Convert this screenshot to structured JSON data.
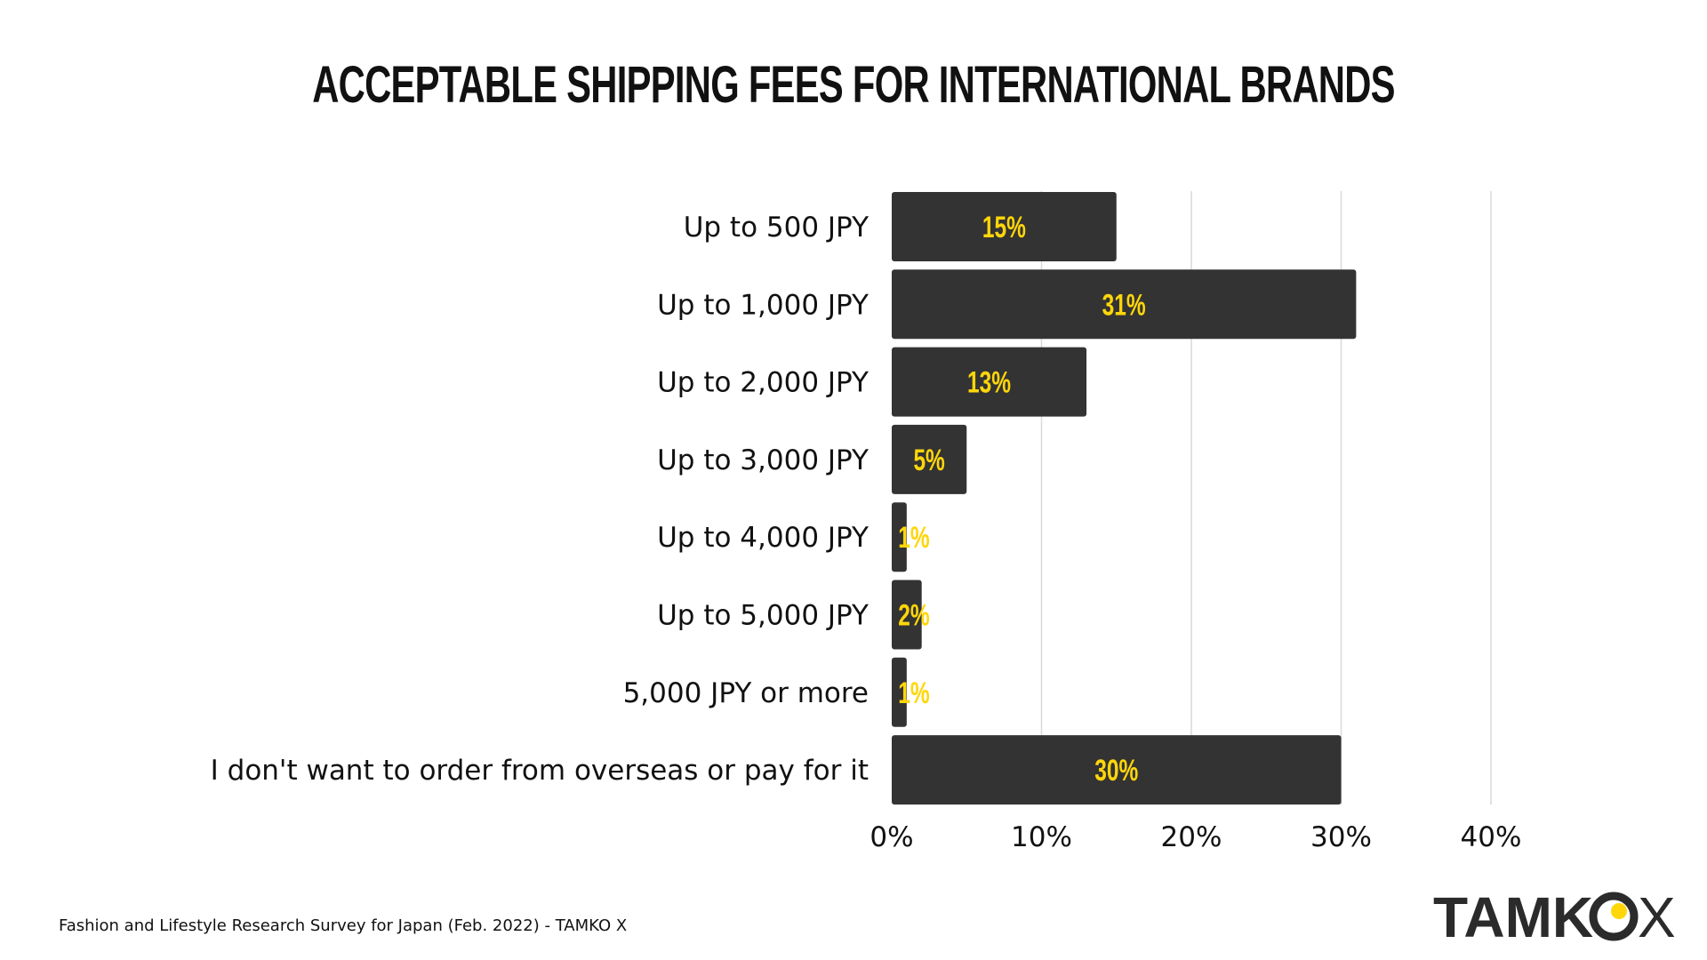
{
  "chart_data": {
    "type": "bar",
    "orientation": "horizontal",
    "title": "ACCEPTABLE SHIPPING FEES FOR INTERNATIONAL BRANDS",
    "categories": [
      "Up to 500 JPY",
      "Up to 1,000 JPY",
      "Up to 2,000 JPY",
      "Up to 3,000 JPY",
      "Up to 4,000 JPY",
      "Up to 5,000 JPY",
      "5,000 JPY or more",
      "I don't want to order from overseas or pay for it"
    ],
    "values": [
      15,
      31,
      13,
      5,
      1,
      2,
      1,
      30
    ],
    "data_labels": [
      "15%",
      "31%",
      "13%",
      "5%",
      "1%",
      "2%",
      "1%",
      "30%"
    ],
    "xlim": [
      0,
      40
    ],
    "x_ticks": [
      0,
      10,
      20,
      30,
      40
    ],
    "x_tick_labels": [
      "0%",
      "10%",
      "20%",
      "30%",
      "40%"
    ],
    "grid": true,
    "legend": "none",
    "colors": {
      "bar": "#333333",
      "label": "#FFD60A",
      "grid": "#d9d9d9"
    }
  },
  "footer": {
    "source": "Fashion and Lifestyle Research Survey for Japan (Feb. 2022) - TAMKO X",
    "logo_text": "TAMKOX"
  }
}
